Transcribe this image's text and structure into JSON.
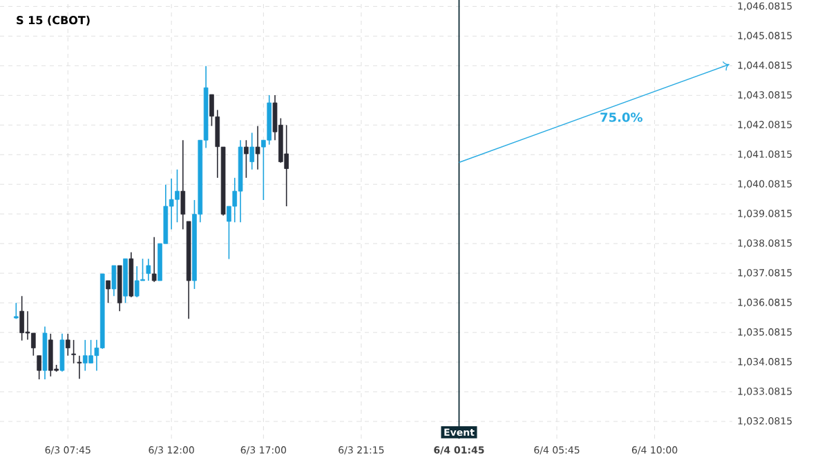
{
  "chart_data": {
    "type": "candlestick",
    "title": "S 15 (CBOT)",
    "categories": [
      null,
      null,
      null,
      null,
      null,
      null,
      null,
      null,
      null,
      "6/3 07:45",
      null,
      null,
      null,
      null,
      null,
      null,
      null,
      null,
      null,
      null,
      null,
      null,
      null,
      null,
      null,
      null,
      null,
      "6/3 12:00",
      null,
      null,
      null,
      null,
      null,
      null,
      null,
      null,
      null,
      null,
      null,
      null,
      null,
      null,
      null,
      "6/3 17:00",
      null,
      null,
      null,
      null,
      null,
      null,
      null,
      null,
      null,
      null,
      null,
      null,
      null,
      null,
      null,
      null,
      "6/3 21:15",
      null,
      null,
      null,
      null,
      null,
      null,
      null,
      null,
      null,
      null,
      null,
      null,
      null,
      null,
      null,
      null,
      "6/4 01:45",
      null,
      null,
      null,
      null,
      null,
      null,
      null,
      null,
      null,
      null,
      null,
      null,
      null,
      null,
      null,
      null,
      "6/4 05:45",
      null,
      null,
      null,
      null,
      null,
      null,
      null,
      null,
      null,
      null,
      null,
      null,
      null,
      null,
      null,
      null,
      "6/4 10:00",
      null,
      null,
      null,
      null,
      null,
      null,
      null,
      null,
      null,
      null,
      null,
      null,
      null
    ],
    "ohlc": [
      [
        1035.57,
        1036.08,
        1035.54,
        1035.62
      ],
      [
        1035.8,
        1036.31,
        1034.81,
        1035.07
      ],
      [
        1035.1,
        1035.8,
        1034.84,
        1035.06
      ],
      [
        1035.06,
        1035.06,
        1034.3,
        1034.56
      ],
      [
        1034.3,
        1034.3,
        1033.5,
        1033.8
      ],
      [
        1033.8,
        1035.28,
        1033.5,
        1035.06
      ],
      [
        1034.83,
        1035.04,
        1033.6,
        1033.8
      ],
      [
        1033.85,
        1033.99,
        1033.76,
        1033.8
      ],
      [
        1033.8,
        1035.04,
        1033.76,
        1034.83
      ],
      [
        1034.83,
        1035.04,
        1034.3,
        1034.56
      ],
      [
        1034.36,
        1034.83,
        1034.04,
        1034.33
      ],
      [
        1034.08,
        1034.3,
        1033.52,
        1034.05
      ],
      [
        1034.05,
        1034.83,
        1033.79,
        1034.3
      ],
      [
        1034.05,
        1034.83,
        1034.04,
        1034.3
      ],
      [
        1034.3,
        1034.83,
        1033.79,
        1034.56
      ],
      [
        1034.56,
        1037.06,
        1034.53,
        1037.06
      ],
      [
        1036.83,
        1036.83,
        1036.08,
        1036.55
      ],
      [
        1036.55,
        1037.34,
        1036.31,
        1037.34
      ],
      [
        1037.34,
        1037.34,
        1035.8,
        1036.08
      ],
      [
        1036.31,
        1037.57,
        1036.08,
        1037.57
      ],
      [
        1037.57,
        1037.79,
        1036.27,
        1036.31
      ],
      [
        1036.31,
        1037.32,
        1036.27,
        1036.83
      ],
      [
        1036.83,
        1037.57,
        1036.83,
        1036.87
      ],
      [
        1037.07,
        1037.57,
        1036.83,
        1037.34
      ],
      [
        1037.06,
        1038.3,
        1036.79,
        1036.83
      ],
      [
        1036.83,
        1038.08,
        1036.83,
        1038.08
      ],
      [
        1038.08,
        1040.07,
        1038.08,
        1039.34
      ],
      [
        1039.34,
        1040.27,
        1038.56,
        1039.57
      ],
      [
        1039.57,
        1040.58,
        1038.8,
        1039.85
      ],
      [
        1039.85,
        1041.57,
        1038.56,
        1039.07
      ],
      [
        1038.83,
        1038.83,
        1035.54,
        1036.83
      ],
      [
        1036.83,
        1039.55,
        1036.55,
        1039.07
      ],
      [
        1039.07,
        1041.57,
        1038.8,
        1041.57
      ],
      [
        1041.57,
        1044.07,
        1041.31,
        1043.34
      ],
      [
        1043.11,
        1043.11,
        1042.05,
        1042.38
      ],
      [
        1042.36,
        1042.59,
        1040.3,
        1041.35
      ],
      [
        1041.34,
        1041.34,
        1039.03,
        1039.07
      ],
      [
        1038.83,
        1039.34,
        1037.56,
        1039.34
      ],
      [
        1039.34,
        1040.3,
        1038.8,
        1039.85
      ],
      [
        1039.85,
        1041.57,
        1038.8,
        1041.34
      ],
      [
        1041.34,
        1041.57,
        1040.3,
        1041.11
      ],
      [
        1040.84,
        1041.82,
        1040.58,
        1041.34
      ],
      [
        1041.34,
        1042.05,
        1040.58,
        1041.11
      ],
      [
        1041.34,
        1041.57,
        1039.55,
        1041.57
      ],
      [
        1041.57,
        1043.09,
        1041.42,
        1042.83
      ],
      [
        1042.83,
        1043.09,
        1041.57,
        1041.85
      ],
      [
        1042.08,
        1042.31,
        1040.81,
        1040.84
      ],
      [
        1041.11,
        1042.08,
        1039.34,
        1040.61
      ],
      null,
      null,
      null,
      null,
      null,
      null,
      null,
      null,
      null,
      null,
      null,
      null,
      null,
      null,
      null,
      null,
      null,
      null,
      null,
      null,
      null,
      null,
      null,
      null,
      null,
      null,
      null,
      null,
      null,
      null,
      null,
      null,
      null,
      null,
      null,
      null,
      null,
      null,
      null,
      null,
      null,
      null,
      null,
      null,
      null,
      null,
      null,
      null,
      null,
      null,
      null,
      null,
      null,
      null,
      null,
      null,
      null,
      null,
      null,
      null,
      null,
      null,
      null,
      null,
      null,
      null,
      null,
      null,
      null,
      null,
      null,
      null,
      null,
      null,
      null,
      null,
      null
    ],
    "colors": [
      "#1ba3de",
      "#2a2a33",
      "#2a2a33",
      "#2a2a33",
      "#2a2a33",
      "#1ba3de",
      "#2a2a33",
      "#2a2a33",
      "#1ba3de",
      "#2a2a33",
      "#2a2a33",
      "#2a2a33",
      "#1ba3de",
      "#1ba3de",
      "#1ba3de",
      "#1ba3de",
      "#2a2a33",
      "#1ba3de",
      "#2a2a33",
      "#1ba3de",
      "#2a2a33",
      "#1ba3de",
      "#1ba3de",
      "#1ba3de",
      "#2a2a33",
      "#1ba3de",
      "#1ba3de",
      "#1ba3de",
      "#1ba3de",
      "#2a2a33",
      "#2a2a33",
      "#1ba3de",
      "#1ba3de",
      "#1ba3de",
      "#2a2a33",
      "#2a2a33",
      "#2a2a33",
      "#1ba3de",
      "#1ba3de",
      "#1ba3de",
      "#2a2a33",
      "#1ba3de",
      "#2a2a33",
      "#1ba3de",
      "#1ba3de",
      "#2a2a33",
      "#2a2a33",
      "#2a2a33",
      null,
      null,
      null,
      null,
      null,
      null,
      null,
      null,
      null,
      null,
      null,
      null,
      null,
      null,
      null,
      null,
      null,
      null,
      null,
      null,
      null,
      null,
      null,
      null,
      null,
      null,
      null,
      null,
      null,
      null,
      null,
      null,
      null,
      null,
      null,
      null,
      null,
      null,
      null,
      null,
      null,
      null,
      null,
      null,
      null,
      null,
      null,
      null,
      null,
      null,
      null,
      null,
      null,
      null,
      null,
      null,
      null,
      null,
      null,
      null,
      null,
      null,
      null,
      null,
      null,
      null,
      null,
      null,
      null,
      null,
      null,
      null,
      null,
      null,
      null,
      null,
      null
    ],
    "series": [
      {
        "type": "line",
        "color": "#29abe2",
        "values": [
          null,
          null,
          null,
          null,
          null,
          null,
          null,
          null,
          null,
          null,
          null,
          null,
          null,
          null,
          null,
          null,
          null,
          null,
          null,
          null,
          null,
          null,
          null,
          null,
          null,
          null,
          null,
          null,
          null,
          null,
          null,
          null,
          null,
          null,
          null,
          null,
          null,
          null,
          null,
          null,
          null,
          null,
          null,
          null,
          null,
          null,
          null,
          null,
          null,
          null,
          null,
          null,
          null,
          null,
          null,
          null,
          null,
          null,
          null,
          null,
          null,
          null,
          null,
          null,
          null,
          null,
          null,
          null,
          null,
          null,
          null,
          null,
          null,
          null,
          null,
          null,
          null,
          1040.82,
          null,
          null,
          null,
          null,
          null,
          null,
          null,
          null,
          null,
          null,
          null,
          null,
          null,
          null,
          null,
          null,
          null,
          null,
          null,
          null,
          null,
          null,
          null,
          null,
          null,
          null,
          null,
          null,
          null,
          null,
          null,
          null,
          null,
          null,
          null,
          null,
          null,
          null,
          null,
          null,
          null,
          null,
          null,
          null,
          null,
          null,
          1044.13
        ]
      }
    ],
    "annotations": [
      "75.0%"
    ],
    "ref_lines": [
      {
        "axis": "x",
        "value": "6/4 01:45",
        "label": "Event",
        "color": "#0d2b36"
      }
    ],
    "ylim": [
      1031.5,
      1046.3
    ],
    "yticks": [
      {
        "value": 1032.0815,
        "label": "1,032.0815"
      },
      {
        "value": 1033.0815,
        "label": "1,033.0815"
      },
      {
        "value": 1034.0815,
        "label": "1,034.0815"
      },
      {
        "value": 1035.0815,
        "label": "1,035.0815"
      },
      {
        "value": 1036.0815,
        "label": "1,036.0815"
      },
      {
        "value": 1037.0815,
        "label": "1,037.0815"
      },
      {
        "value": 1038.0815,
        "label": "1,038.0815"
      },
      {
        "value": 1039.0815,
        "label": "1,039.0815"
      },
      {
        "value": 1040.0815,
        "label": "1,040.0815"
      },
      {
        "value": 1041.0815,
        "label": "1,041.0815"
      },
      {
        "value": 1042.0815,
        "label": "1,042.0815"
      },
      {
        "value": 1043.0815,
        "label": "1,043.0815"
      },
      {
        "value": 1044.0815,
        "label": "1,044.0815"
      },
      {
        "value": 1045.0815,
        "label": "1,045.0815"
      },
      {
        "value": 1046.0815,
        "label": "1,046.0815"
      }
    ],
    "grid": true,
    "line_style": "solid"
  }
}
